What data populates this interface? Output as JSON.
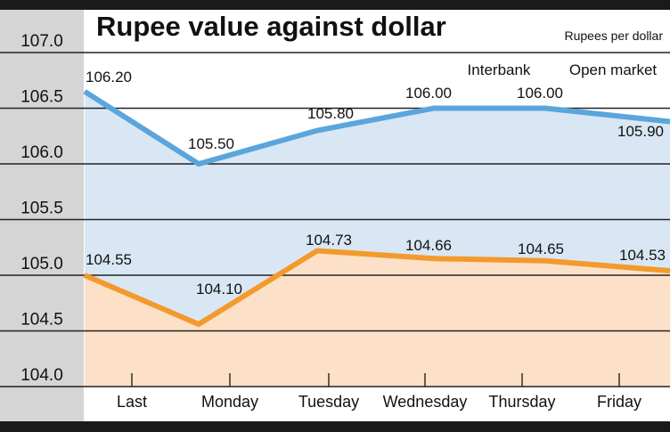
{
  "chart_data": {
    "type": "line",
    "title": "Rupee value against dollar",
    "units": "Rupees per dollar",
    "categories": [
      "Last",
      "Monday",
      "Tuesday",
      "Wednesday",
      "Thursday",
      "Friday"
    ],
    "y_ticks": [
      "107.0",
      "106.5",
      "106.0",
      "105.5",
      "105.0",
      "104.5",
      "104.0"
    ],
    "series": [
      {
        "name": "Interbank",
        "color": "#5aa5dc",
        "fill": "#d9e7f4",
        "values": [
          106.65,
          106.0,
          106.3,
          106.5,
          106.5,
          106.38
        ],
        "labels": [
          "106.20",
          "105.50",
          "105.80",
          "106.00",
          "106.00",
          "105.90"
        ]
      },
      {
        "name": "Open market",
        "color": "#f39a2c",
        "fill": "#fce1c8",
        "values": [
          105.0,
          104.56,
          105.22,
          105.15,
          105.13,
          105.04
        ],
        "labels": [
          "104.55",
          "104.10",
          "104.73",
          "104.66",
          "104.65",
          "104.53"
        ]
      }
    ],
    "grid": true
  }
}
